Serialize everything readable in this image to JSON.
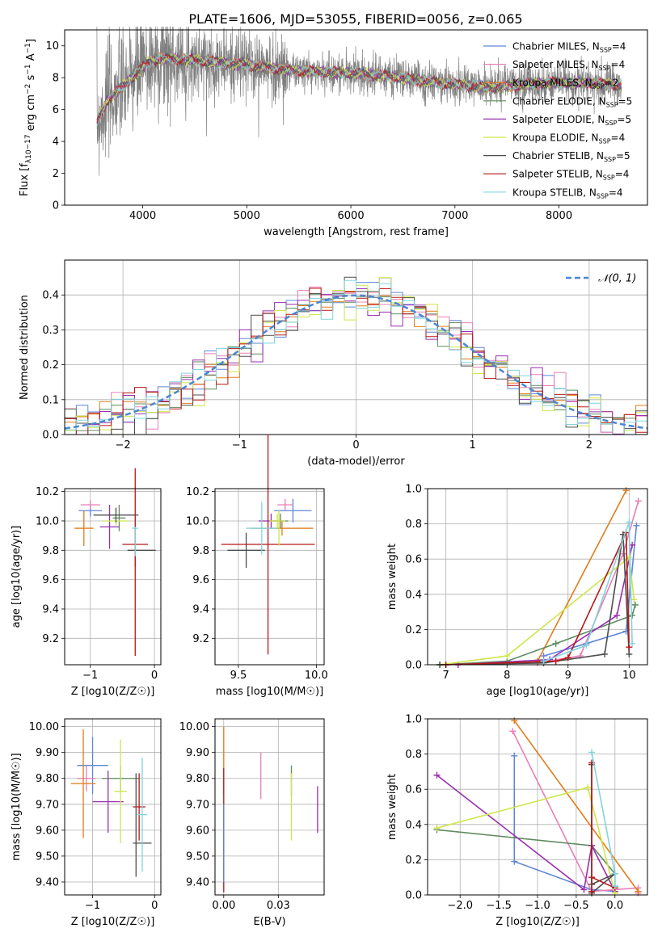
{
  "figure": {
    "title": "PLATE=1606, MJD=53055, FIBERID=0056, z=0.065"
  },
  "colors": {
    "Chabrier MILES": "#5f86d6",
    "Salpeter MILES": "#e97fb7",
    "Kroupa MILES": "#e07c1a",
    "Chabrier ELODIE": "#5e8a5e",
    "Salpeter ELODIE": "#9a2fb0",
    "Kroupa ELODIE": "#cde64a",
    "Chabrier STELIB": "#4d4d4d",
    "Salpeter STELIB": "#b81717",
    "Kroupa STELIB": "#7fd5de",
    "data": "#808080",
    "grid": "#b0b0b0"
  },
  "legends": {
    "spectrum": [
      "Chabrier MILES, N_SSP=4",
      "Salpeter MILES, N_SSP=4",
      "Kroupa MILES, N_SSP=2",
      "Chabrier ELODIE, N_SSP=5",
      "Salpeter ELODIE, N_SSP=5",
      "Kroupa ELODIE, N_SSP=4",
      "Chabrier STELIB, N_SSP=5",
      "Salpeter STELIB, N_SSP=4",
      "Kroupa STELIB, N_SSP=4"
    ],
    "residual": "𝒩(0, 1)"
  },
  "chart_data": [
    {
      "id": "spectrum",
      "type": "line",
      "xlabel": "wavelength [Angstrom, rest frame]",
      "ylabel": "Flux [f_λ10^-17 erg cm^-2 s^-1 A^-1]",
      "xlim": [
        3250,
        8850
      ],
      "ylim": [
        0,
        11
      ],
      "xticks": [
        4000,
        5000,
        6000,
        7000,
        8000
      ],
      "yticks": [
        0,
        2,
        4,
        6,
        8,
        10
      ],
      "continuum": {
        "x": [
          3560,
          3650,
          3800,
          3950,
          4050,
          4200,
          4500,
          5000,
          5500,
          6000,
          6500,
          6800,
          7000,
          7300,
          7500,
          8000,
          8500,
          8600
        ],
        "y": [
          5.2,
          6.5,
          7.4,
          8.3,
          9.0,
          9.2,
          9.1,
          8.8,
          8.4,
          8.3,
          8.0,
          7.7,
          7.6,
          7.4,
          7.5,
          7.7,
          7.6,
          7.5
        ]
      },
      "x_range": [
        3560,
        8600
      ],
      "grid": false,
      "legend": "top-right"
    },
    {
      "id": "residuals",
      "type": "bar",
      "xlabel": "(data-model)/error",
      "ylabel": "Normed distribution",
      "xlim": [
        -2.5,
        2.5
      ],
      "ylim": [
        0,
        0.5
      ],
      "xticks": [
        -2,
        -1,
        0,
        1,
        2
      ],
      "yticks": [
        0.0,
        0.1,
        0.2,
        0.3,
        0.4
      ],
      "bin_width": 0.1,
      "gaussian": {
        "mu": 0,
        "sigma": 1
      },
      "grid": true,
      "legend": "top-right"
    },
    {
      "id": "age-vs-Z",
      "type": "scatter",
      "xlabel": "Z [log10(Z/Z☉)]",
      "ylabel": "age [log10(age/yr)]",
      "xlim": [
        -1.4,
        0.1
      ],
      "ylim": [
        9.02,
        10.22
      ],
      "xticks": [
        -1,
        0
      ],
      "yticks": [
        9.2,
        9.4,
        9.6,
        9.8,
        10.0,
        10.2
      ],
      "points": [
        {
          "s": "Chabrier MILES",
          "x": -1.0,
          "y": 10.07,
          "xerr": 0.18,
          "yerr": 0.04
        },
        {
          "s": "Salpeter MILES",
          "x": -1.0,
          "y": 10.11,
          "xerr": 0.15,
          "yerr": 0.03
        },
        {
          "s": "Kroupa MILES",
          "x": -1.1,
          "y": 9.95,
          "xerr": 0.15,
          "yerr": 0.12
        },
        {
          "s": "Chabrier ELODIE",
          "x": -0.55,
          "y": 10.02,
          "xerr": 0.1,
          "yerr": 0.09
        },
        {
          "s": "Salpeter ELODIE",
          "x": -0.7,
          "y": 9.96,
          "xerr": 0.15,
          "yerr": 0.15
        },
        {
          "s": "Kroupa ELODIE",
          "x": -0.6,
          "y": 10.0,
          "xerr": 0.2,
          "yerr": 0.03
        },
        {
          "s": "Chabrier STELIB",
          "x": -0.6,
          "y": 10.04,
          "xerr": 0.35,
          "yerr": 0.05
        },
        {
          "s": "Salpeter STELIB",
          "x": -0.3,
          "y": 9.84,
          "xerr": 0.2,
          "yerr": 0.15
        },
        {
          "s": "Kroupa STELIB",
          "x": -0.3,
          "y": 9.95,
          "xerr": 0.05,
          "yerr": 0.08
        },
        {
          "s": "Chabrier STELIB",
          "x": -0.2,
          "y": 9.8,
          "xerr": 0.22,
          "yerr": 0.0
        },
        {
          "s": "Salpeter STELIB",
          "x": -0.3,
          "y": 9.72,
          "xerr": 0.0,
          "yerr": 0.64
        },
        {
          "s": "Kroupa STELIB",
          "x": -0.3,
          "y": 9.86,
          "xerr": 0.0,
          "yerr": 0.1
        }
      ]
    },
    {
      "id": "age-vs-mass",
      "type": "scatter",
      "xlabel": "mass [log10(M/M☉)]",
      "ylabel": "",
      "xlim": [
        9.35,
        10.05
      ],
      "ylim": [
        9.02,
        10.22
      ],
      "xticks": [
        9.5,
        10.0
      ],
      "yticks": [
        9.2,
        9.4,
        9.6,
        9.8,
        10.0,
        10.2
      ],
      "points": [
        {
          "s": "Chabrier MILES",
          "x": 9.85,
          "y": 10.07,
          "xerr": 0.12,
          "yerr": 0.08
        },
        {
          "s": "Salpeter MILES",
          "x": 9.8,
          "y": 10.11,
          "xerr": 0.05,
          "yerr": 0.04
        },
        {
          "s": "Kroupa MILES",
          "x": 9.78,
          "y": 9.95,
          "xerr": 0.2,
          "yerr": 0.05
        },
        {
          "s": "Chabrier ELODIE",
          "x": 9.77,
          "y": 10.0,
          "xerr": 0.05,
          "yerr": 0.05
        },
        {
          "s": "Salpeter ELODIE",
          "x": 9.71,
          "y": 10.0,
          "xerr": 0.08,
          "yerr": 0.05
        },
        {
          "s": "Kroupa ELODIE",
          "x": 9.75,
          "y": 10.0,
          "xerr": 0.05,
          "yerr": 0.05
        },
        {
          "s": "Chabrier STELIB",
          "x": 9.55,
          "y": 9.8,
          "xerr": 0.12,
          "yerr": 0.12
        },
        {
          "s": "Salpeter STELIB",
          "x": 9.69,
          "y": 9.84,
          "xerr": 0.3,
          "yerr": 0.75
        },
        {
          "s": "Kroupa STELIB",
          "x": 9.65,
          "y": 9.95,
          "xerr": 0.1,
          "yerr": 0.18
        },
        {
          "s": "Kroupa ELODIE",
          "x": 9.76,
          "y": 9.95,
          "xerr": 0.0,
          "yerr": 0.12
        }
      ]
    },
    {
      "id": "mass-weight-vs-age",
      "type": "line",
      "xlabel": "age [log10(age/yr)]",
      "ylabel": "mass weight",
      "xlim": [
        6.7,
        10.3
      ],
      "ylim": [
        0,
        1.0
      ],
      "xticks": [
        7,
        8,
        9,
        10
      ],
      "yticks": [
        0.0,
        0.2,
        0.4,
        0.6,
        0.8,
        1.0
      ],
      "grid": true,
      "series": [
        {
          "s": "Chabrier MILES",
          "x": [
            8.6,
            9.3,
            9.95,
            10.12
          ],
          "y": [
            0.05,
            0.12,
            0.19,
            0.79
          ]
        },
        {
          "s": "Salpeter MILES",
          "x": [
            8.5,
            9.2,
            9.9,
            10.15
          ],
          "y": [
            0.01,
            0.05,
            0.63,
            0.93
          ]
        },
        {
          "s": "Kroupa MILES",
          "x": [
            8.5,
            9.95
          ],
          "y": [
            0.02,
            0.99
          ]
        },
        {
          "s": "Chabrier ELODIE",
          "x": [
            6.9,
            8.0,
            8.8,
            10.05,
            10.1
          ],
          "y": [
            0.0,
            0.02,
            0.12,
            0.28,
            0.34
          ]
        },
        {
          "s": "Salpeter ELODIE",
          "x": [
            7.2,
            8.7,
            9.8,
            10.05
          ],
          "y": [
            0.0,
            0.03,
            0.28,
            0.68
          ]
        },
        {
          "s": "Kroupa ELODIE",
          "x": [
            6.9,
            8.0,
            10.0,
            10.08
          ],
          "y": [
            0.0,
            0.05,
            0.61,
            0.37
          ]
        },
        {
          "s": "Chabrier STELIB",
          "x": [
            6.9,
            8.6,
            9.6,
            9.9,
            10.0
          ],
          "y": [
            0.0,
            0.01,
            0.06,
            0.74,
            0.06
          ]
        },
        {
          "s": "Salpeter STELIB",
          "x": [
            7.0,
            8.8,
            9.0,
            9.95,
            10.0
          ],
          "y": [
            0.0,
            0.02,
            0.04,
            0.75,
            0.1
          ]
        },
        {
          "s": "Kroupa STELIB",
          "x": [
            8.6,
            9.3,
            10.0,
            10.05
          ],
          "y": [
            0.02,
            0.11,
            0.81,
            0.12
          ]
        }
      ]
    },
    {
      "id": "mass-vs-Z",
      "type": "scatter",
      "xlabel": "Z [log10(Z/Z☉)]",
      "ylabel": "mass [log10(M/M☉)]",
      "xlim": [
        -1.45,
        0.1
      ],
      "ylim": [
        9.35,
        10.03
      ],
      "xticks": [
        -1,
        0
      ],
      "yticks": [
        9.4,
        9.5,
        9.6,
        9.7,
        9.8,
        9.9,
        10.0
      ],
      "points": [
        {
          "s": "Chabrier MILES",
          "x": -1.0,
          "y": 9.85,
          "xerr": 0.25,
          "yerr": 0.11
        },
        {
          "s": "Salpeter MILES",
          "x": -1.1,
          "y": 9.8,
          "xerr": 0.15,
          "yerr": 0.05
        },
        {
          "s": "Kroupa MILES",
          "x": -1.15,
          "y": 9.78,
          "xerr": 0.2,
          "yerr": 0.21
        },
        {
          "s": "Chabrier ELODIE",
          "x": -0.55,
          "y": 9.8,
          "xerr": 0.3,
          "yerr": 0.05
        },
        {
          "s": "Salpeter ELODIE",
          "x": -0.75,
          "y": 9.71,
          "xerr": 0.25,
          "yerr": 0.12
        },
        {
          "s": "Kroupa ELODIE",
          "x": -0.55,
          "y": 9.75,
          "xerr": 0.1,
          "yerr": 0.2
        },
        {
          "s": "Chabrier STELIB",
          "x": -0.2,
          "y": 9.55,
          "xerr": 0.15,
          "yerr": 0.0
        },
        {
          "s": "Salpeter STELIB",
          "x": -0.25,
          "y": 9.69,
          "xerr": 0.1,
          "yerr": 0.13
        },
        {
          "s": "Kroupa STELIB",
          "x": -0.2,
          "y": 9.66,
          "xerr": 0.08,
          "yerr": 0.22
        },
        {
          "s": "Chabrier STELIB",
          "x": -0.3,
          "y": 9.62,
          "xerr": 0.0,
          "yerr": 0.2
        }
      ]
    },
    {
      "id": "mass-vs-EBV",
      "type": "scatter",
      "xlabel": "E(B-V)",
      "ylabel": "",
      "xlim": [
        -0.004,
        0.046
      ],
      "ylim": [
        9.35,
        10.03
      ],
      "xticks": [
        0.0,
        0.025
      ],
      "yticks": [
        9.4,
        9.5,
        9.6,
        9.7,
        9.8,
        9.9,
        10.0
      ],
      "points": [
        {
          "s": "Kroupa MILES",
          "x": 0.0,
          "y": 9.87,
          "xerr": 0,
          "yerr": 0.13
        },
        {
          "s": "Salpeter STELIB",
          "x": 0.0,
          "y": 9.6,
          "xerr": 0,
          "yerr": 0.24
        },
        {
          "s": "Chabrier MILES",
          "x": 0.0,
          "y": 9.55,
          "xerr": 0,
          "yerr": 0.15
        },
        {
          "s": "Salpeter MILES",
          "x": 0.017,
          "y": 9.81,
          "xerr": 0,
          "yerr": 0.09
        },
        {
          "s": "Chabrier ELODIE",
          "x": 0.031,
          "y": 9.79,
          "xerr": 0,
          "yerr": 0.06
        },
        {
          "s": "Kroupa ELODIE",
          "x": 0.031,
          "y": 9.69,
          "xerr": 0,
          "yerr": 0.13
        },
        {
          "s": "Salpeter ELODIE",
          "x": 0.043,
          "y": 9.68,
          "xerr": 0,
          "yerr": 0.09
        }
      ]
    },
    {
      "id": "mass-weight-vs-Z",
      "type": "line",
      "xlabel": "Z [log10(Z/Z☉)]",
      "ylabel": "mass weight",
      "xlim": [
        -2.42,
        0.42
      ],
      "ylim": [
        0,
        1.0
      ],
      "xticks": [
        -2.0,
        -1.5,
        -1.0,
        -0.5,
        0.0
      ],
      "yticks": [
        0.0,
        0.2,
        0.4,
        0.6,
        0.8,
        1.0
      ],
      "grid": true,
      "series": [
        {
          "s": "Chabrier MILES",
          "x": [
            -1.3,
            -1.3,
            -0.3,
            0.0
          ],
          "y": [
            0.79,
            0.19,
            0.03,
            0.02
          ]
        },
        {
          "s": "Salpeter MILES",
          "x": [
            -1.32,
            -0.3,
            0.3,
            0.3
          ],
          "y": [
            0.93,
            0.02,
            0.04,
            0.01
          ]
        },
        {
          "s": "Kroupa MILES",
          "x": [
            -1.3,
            0.3
          ],
          "y": [
            0.99,
            0.02
          ]
        },
        {
          "s": "Chabrier ELODIE",
          "x": [
            -2.3,
            -0.3,
            0.0,
            0.0
          ],
          "y": [
            0.37,
            0.28,
            0.12,
            0.05
          ]
        },
        {
          "s": "Salpeter ELODIE",
          "x": [
            -2.3,
            -0.4,
            -0.3,
            0.0
          ],
          "y": [
            0.68,
            0.03,
            0.28,
            0.02
          ]
        },
        {
          "s": "Kroupa ELODIE",
          "x": [
            -2.3,
            -0.35,
            0.0
          ],
          "y": [
            0.38,
            0.61,
            0.01
          ]
        },
        {
          "s": "Chabrier STELIB",
          "x": [
            -0.3,
            -0.3,
            0.0,
            -0.3
          ],
          "y": [
            0.74,
            0.06,
            0.12,
            0.01
          ]
        },
        {
          "s": "Salpeter STELIB",
          "x": [
            -0.3,
            -0.3,
            -0.3,
            0.0
          ],
          "y": [
            0.75,
            0.02,
            0.1,
            0.04
          ]
        },
        {
          "s": "Kroupa STELIB",
          "x": [
            -0.3,
            0.0,
            0.0
          ],
          "y": [
            0.81,
            0.12,
            0.05
          ]
        }
      ]
    }
  ]
}
